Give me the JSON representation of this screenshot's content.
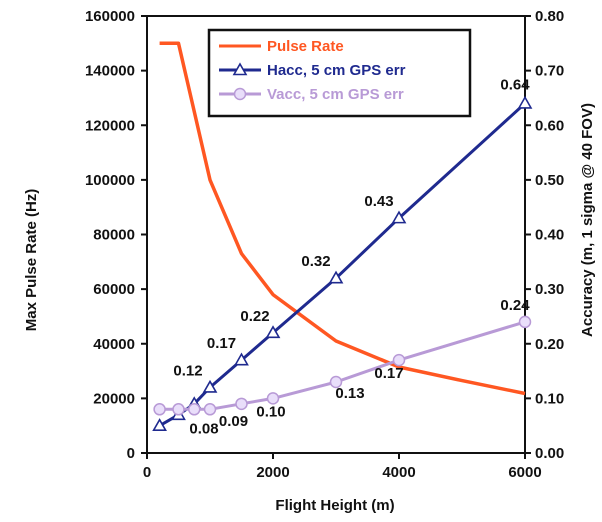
{
  "chart_data": {
    "type": "line",
    "xlabel": "Flight Height (m)",
    "ylabel_left": "Max Pulse Rate (Hz)",
    "ylabel_right": "Accuracy (m, 1 sigma @ 40 FOV)",
    "xlim": [
      0,
      6000
    ],
    "ylim_left": [
      0,
      160000
    ],
    "ylim_right": [
      0,
      0.8
    ],
    "x_ticks": [
      "0",
      "2000",
      "4000",
      "6000"
    ],
    "y_left_ticks": [
      "0",
      "20000",
      "40000",
      "60000",
      "80000",
      "100000",
      "120000",
      "140000",
      "160000"
    ],
    "y_right_ticks": [
      "0.00",
      "0.10",
      "0.20",
      "0.30",
      "0.40",
      "0.50",
      "0.60",
      "0.70",
      "0.80"
    ],
    "grid": false,
    "legend_position": "top-center",
    "series": [
      {
        "name": "Pulse Rate",
        "axis": "left",
        "color": "#ff5722",
        "marker": "none",
        "x": [
          200,
          500,
          700,
          1000,
          1500,
          2000,
          3000,
          4000,
          5000,
          6000
        ],
        "y": [
          150000,
          150000,
          130000,
          100000,
          73000,
          58000,
          41000,
          31500,
          26500,
          21800
        ]
      },
      {
        "name": "Hacc, 5 cm GPS err",
        "axis": "right",
        "color": "#1f2a8f",
        "marker": "triangle",
        "x": [
          200,
          500,
          750,
          1000,
          1500,
          2000,
          3000,
          4000,
          6000
        ],
        "y": [
          0.05,
          0.07,
          0.09,
          0.12,
          0.17,
          0.22,
          0.32,
          0.43,
          0.64
        ],
        "labels": [
          {
            "x": 1000,
            "y": 0.12,
            "text": "0.12"
          },
          {
            "x": 1500,
            "y": 0.17,
            "text": "0.17"
          },
          {
            "x": 2000,
            "y": 0.22,
            "text": "0.22"
          },
          {
            "x": 3000,
            "y": 0.32,
            "text": "0.32"
          },
          {
            "x": 4000,
            "y": 0.43,
            "text": "0.43"
          },
          {
            "x": 6000,
            "y": 0.64,
            "text": "0.64"
          }
        ]
      },
      {
        "name": "Vacc, 5 cm GPS err",
        "axis": "right",
        "color": "#b89ad6",
        "marker": "circle",
        "x": [
          200,
          500,
          750,
          1000,
          1500,
          2000,
          3000,
          4000,
          6000
        ],
        "y": [
          0.08,
          0.08,
          0.08,
          0.08,
          0.09,
          0.1,
          0.13,
          0.17,
          0.24
        ],
        "labels": [
          {
            "x": 1000,
            "y": 0.08,
            "text": "0.08"
          },
          {
            "x": 1500,
            "y": 0.09,
            "text": "0.09"
          },
          {
            "x": 2000,
            "y": 0.1,
            "text": "0.10"
          },
          {
            "x": 3000,
            "y": 0.13,
            "text": "0.13"
          },
          {
            "x": 4000,
            "y": 0.17,
            "text": "0.17"
          },
          {
            "x": 6000,
            "y": 0.24,
            "text": "0.24"
          }
        ]
      }
    ]
  }
}
